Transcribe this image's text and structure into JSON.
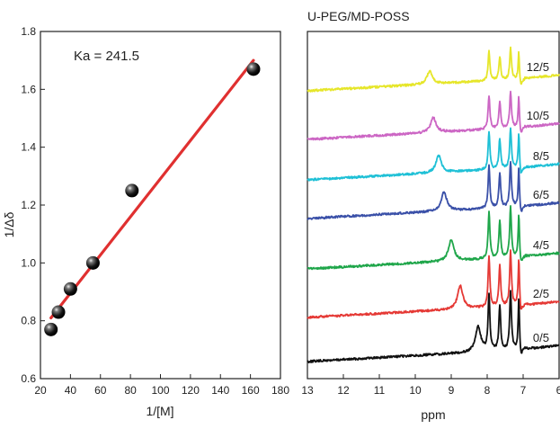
{
  "chart_data": [
    {
      "type": "scatter",
      "title": "",
      "xlabel": "1/[M]",
      "ylabel": "1/Δδ",
      "xlim": [
        20,
        180
      ],
      "ylim": [
        0.6,
        1.8
      ],
      "xticks": [
        "20",
        "40",
        "60",
        "80",
        "100",
        "120",
        "140",
        "160",
        "180"
      ],
      "yticks": [
        "0.6",
        "0.8",
        "1.0",
        "1.2",
        "1.4",
        "1.6",
        "1.8"
      ],
      "annotation": "Ka = 241.5",
      "points": [
        {
          "x": 27,
          "y": 0.77
        },
        {
          "x": 32,
          "y": 0.83
        },
        {
          "x": 40,
          "y": 0.91
        },
        {
          "x": 55,
          "y": 1.0
        },
        {
          "x": 81,
          "y": 1.25
        },
        {
          "x": 162,
          "y": 1.67
        }
      ],
      "fit_line": {
        "x": [
          27,
          162
        ],
        "y": [
          0.81,
          1.7
        ],
        "color": "#e03030"
      }
    },
    {
      "type": "line",
      "title": "U-PEG/MD-POSS",
      "xlabel": "ppm",
      "xlim": [
        13,
        6
      ],
      "xticks": [
        "13",
        "12",
        "11",
        "10",
        "9",
        "8",
        "7",
        "6"
      ],
      "peaks_ppm": [
        7.95,
        7.65,
        7.35,
        7.12
      ],
      "series": [
        {
          "name": "0/5",
          "color": "#111111",
          "nh_peak_ppm": 8.25
        },
        {
          "name": "2/5",
          "color": "#e53935",
          "nh_peak_ppm": 8.75
        },
        {
          "name": "4/5",
          "color": "#1fa64a",
          "nh_peak_ppm": 9.0
        },
        {
          "name": "6/5",
          "color": "#3a50a8",
          "nh_peak_ppm": 9.2
        },
        {
          "name": "8/5",
          "color": "#1ec0d6",
          "nh_peak_ppm": 9.35
        },
        {
          "name": "10/5",
          "color": "#cc66c4",
          "nh_peak_ppm": 9.5
        },
        {
          "name": "12/5",
          "color": "#e6e62a",
          "nh_peak_ppm": 9.6
        }
      ]
    }
  ]
}
